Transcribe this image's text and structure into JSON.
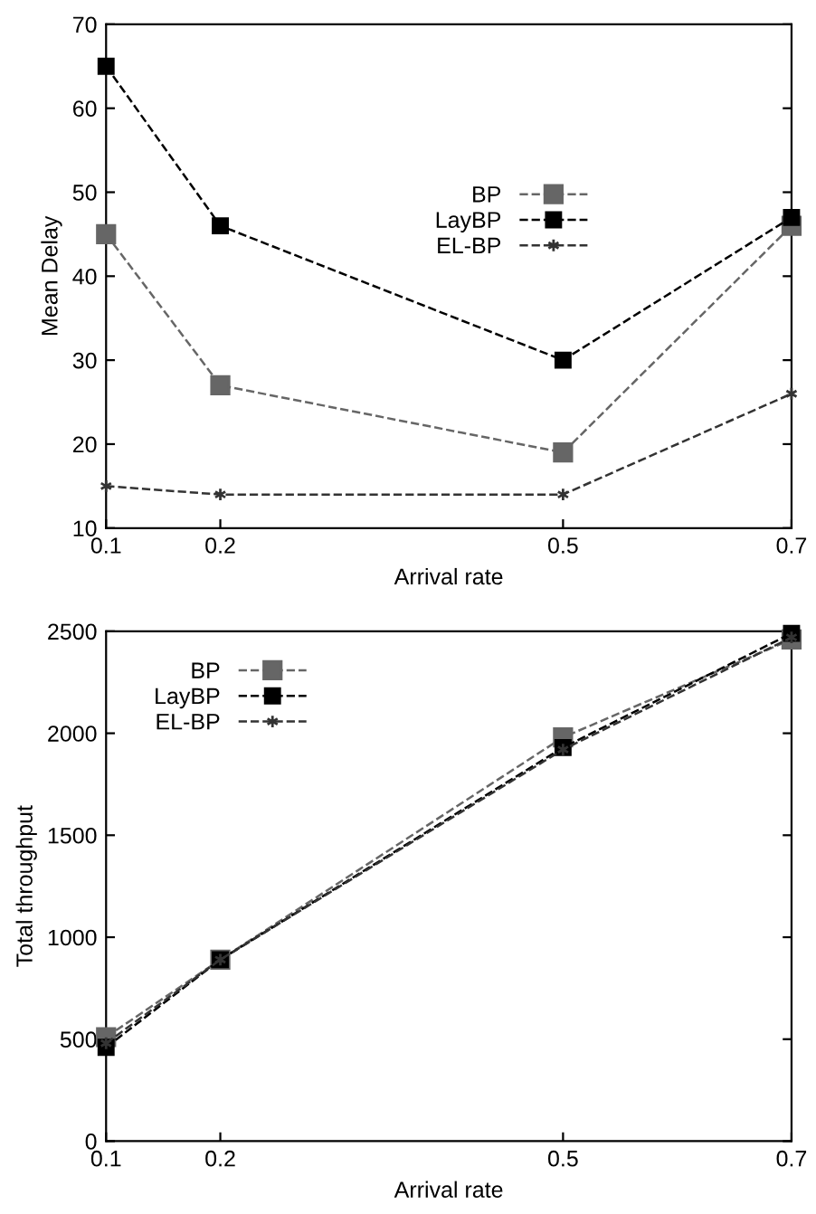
{
  "chart_data": [
    {
      "type": "line",
      "xlabel": "Arrival rate",
      "ylabel": "Mean Delay",
      "x": [
        0.1,
        0.2,
        0.5,
        0.7
      ],
      "xlim": [
        0.1,
        0.7
      ],
      "xticks": [
        0.1,
        0.2,
        0.5,
        0.7
      ],
      "ylim": [
        10,
        70
      ],
      "yticks": [
        10,
        20,
        30,
        40,
        50,
        60,
        70
      ],
      "grid": false,
      "legend": "center",
      "line_style": "dashed",
      "series": [
        {
          "name": "BP",
          "color": "#666666",
          "marker": "square",
          "values": [
            45,
            27,
            19,
            46
          ]
        },
        {
          "name": "LayBP",
          "color": "#000000",
          "marker": "square",
          "values": [
            65,
            46,
            30,
            47
          ]
        },
        {
          "name": "EL-BP",
          "color": "#333333",
          "marker": "cross",
          "values": [
            15,
            14,
            14,
            26
          ]
        }
      ]
    },
    {
      "type": "line",
      "xlabel": "Arrival rate",
      "ylabel": "Total throughput",
      "x": [
        0.1,
        0.2,
        0.5,
        0.7
      ],
      "xlim": [
        0.1,
        0.7
      ],
      "xticks": [
        0.1,
        0.2,
        0.5,
        0.7
      ],
      "ylim": [
        0,
        2500
      ],
      "yticks": [
        0,
        500,
        1000,
        1500,
        2000,
        2500
      ],
      "grid": false,
      "legend": "top left",
      "line_style": "dashed",
      "series": [
        {
          "name": "BP",
          "color": "#666666",
          "marker": "square",
          "values": [
            510,
            890,
            1980,
            2460
          ]
        },
        {
          "name": "LayBP",
          "color": "#000000",
          "marker": "square",
          "values": [
            460,
            890,
            1930,
            2490
          ]
        },
        {
          "name": "EL-BP",
          "color": "#333333",
          "marker": "cross",
          "values": [
            480,
            890,
            1920,
            2470
          ]
        }
      ]
    }
  ]
}
